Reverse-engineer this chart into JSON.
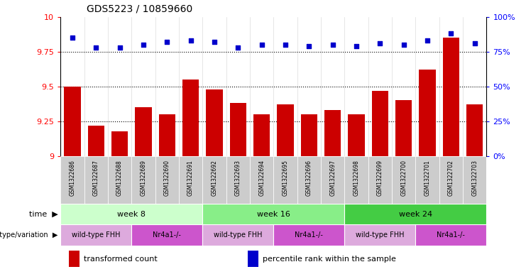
{
  "title": "GDS5223 / 10859660",
  "samples": [
    "GSM1322686",
    "GSM1322687",
    "GSM1322688",
    "GSM1322689",
    "GSM1322690",
    "GSM1322691",
    "GSM1322692",
    "GSM1322693",
    "GSM1322694",
    "GSM1322695",
    "GSM1322696",
    "GSM1322697",
    "GSM1322698",
    "GSM1322699",
    "GSM1322700",
    "GSM1322701",
    "GSM1322702",
    "GSM1322703"
  ],
  "transformed_count": [
    9.5,
    9.22,
    9.18,
    9.35,
    9.3,
    9.55,
    9.48,
    9.38,
    9.3,
    9.37,
    9.3,
    9.33,
    9.3,
    9.47,
    9.4,
    9.62,
    9.85,
    9.37
  ],
  "percentile_rank": [
    85,
    78,
    78,
    80,
    82,
    83,
    82,
    78,
    80,
    80,
    79,
    80,
    79,
    81,
    80,
    83,
    88,
    81
  ],
  "ylim_left": [
    9.0,
    10.0
  ],
  "ylim_right": [
    0,
    100
  ],
  "yticks_left": [
    9.0,
    9.25,
    9.5,
    9.75,
    10.0
  ],
  "yticks_right": [
    0,
    25,
    50,
    75,
    100
  ],
  "hlines": [
    9.25,
    9.5,
    9.75
  ],
  "bar_color": "#cc0000",
  "dot_color": "#0000cc",
  "sample_label_bg": "#cccccc",
  "time_groups": [
    {
      "label": "week 8",
      "start": 0,
      "end": 5,
      "color": "#ccffcc"
    },
    {
      "label": "week 16",
      "start": 6,
      "end": 11,
      "color": "#88ee88"
    },
    {
      "label": "week 24",
      "start": 12,
      "end": 17,
      "color": "#44cc44"
    }
  ],
  "genotype_groups": [
    {
      "label": "wild-type FHH",
      "start": 0,
      "end": 2,
      "color": "#ddaadd"
    },
    {
      "label": "Nr4a1-/-",
      "start": 3,
      "end": 5,
      "color": "#cc66cc"
    },
    {
      "label": "wild-type FHH",
      "start": 6,
      "end": 8,
      "color": "#ddaadd"
    },
    {
      "label": "Nr4a1-/-",
      "start": 9,
      "end": 11,
      "color": "#cc66cc"
    },
    {
      "label": "wild-type FHH",
      "start": 12,
      "end": 14,
      "color": "#ddaadd"
    },
    {
      "label": "Nr4a1-/-",
      "start": 15,
      "end": 17,
      "color": "#cc66cc"
    }
  ]
}
